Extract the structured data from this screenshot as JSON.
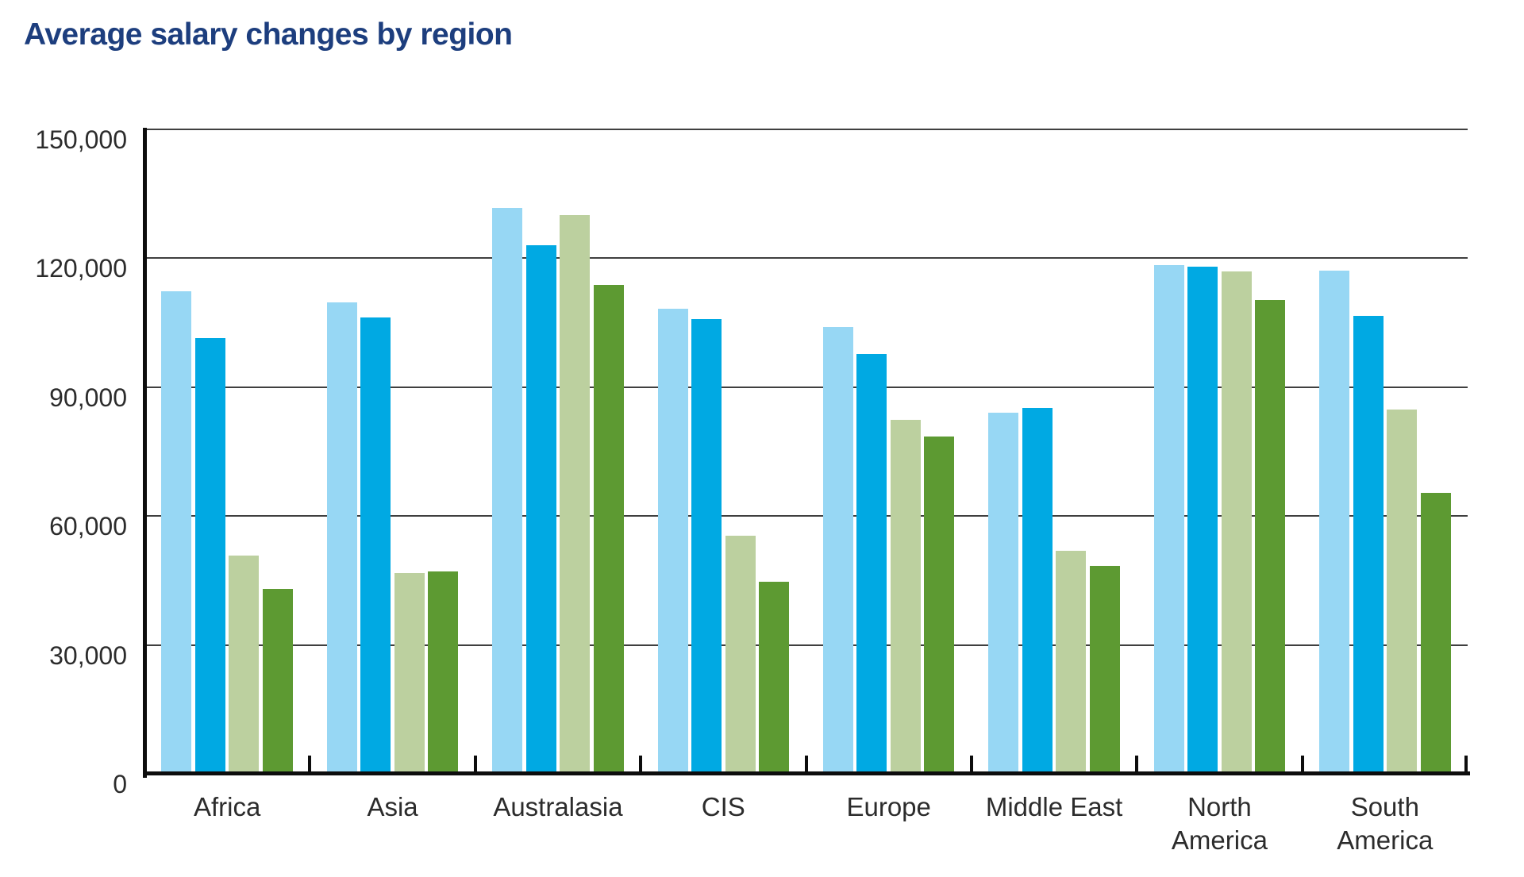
{
  "chart_data": {
    "type": "bar",
    "title": "Average salary changes by region",
    "categories": [
      "Africa",
      "Asia",
      "Australasia",
      "CIS",
      "Europe",
      "Middle East",
      "North America",
      "South America"
    ],
    "two_line_categories": [
      "North America",
      "South America"
    ],
    "series": [
      {
        "name": "series-1-light-blue",
        "color": "#97d7f4",
        "values": [
          112300,
          109800,
          131800,
          108200,
          104000,
          84000,
          118500,
          117100
        ]
      },
      {
        "name": "series-2-blue",
        "color": "#00a9e3",
        "values": [
          101500,
          106200,
          123100,
          105900,
          97700,
          85100,
          118000,
          106500
        ]
      },
      {
        "name": "series-3-light-green",
        "color": "#bcd09f",
        "values": [
          50800,
          46800,
          130000,
          55500,
          82300,
          51900,
          117000,
          84800
        ]
      },
      {
        "name": "series-4-dark-green",
        "color": "#5d9a32",
        "values": [
          43000,
          47200,
          113800,
          44700,
          78500,
          48400,
          110300,
          65400
        ]
      }
    ],
    "ylim": [
      0,
      150000
    ],
    "y_ticks": [
      {
        "value": 0,
        "label": "0"
      },
      {
        "value": 30000,
        "label": "30,000"
      },
      {
        "value": 60000,
        "label": "60,000"
      },
      {
        "value": 90000,
        "label": "90,000"
      },
      {
        "value": 120000,
        "label": "120,000"
      },
      {
        "value": 150000,
        "label": "150,000"
      }
    ],
    "grid": true,
    "legend": "none",
    "title_color": "#1d3e7e",
    "axis_color": "#0d0d0d",
    "gridline_color": "#3f3f3f",
    "label_color": "#2c2c2c"
  }
}
